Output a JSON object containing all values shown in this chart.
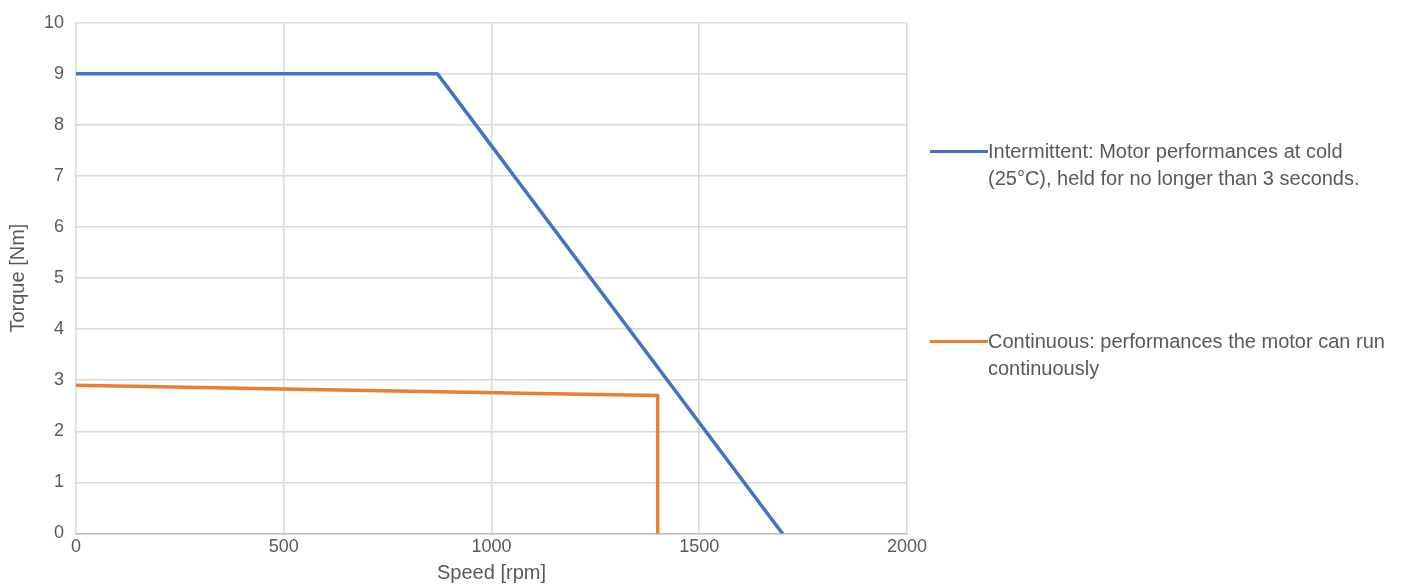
{
  "chart_data": {
    "type": "line",
    "xlabel": "Speed [rpm]",
    "ylabel": "Torque [Nm]",
    "xlim": [
      0,
      2000
    ],
    "xticks": [
      0,
      500,
      1000,
      1500,
      2000
    ],
    "ylim": [
      0,
      10
    ],
    "yticks": [
      0,
      1,
      2,
      3,
      4,
      5,
      6,
      7,
      8,
      9,
      10
    ],
    "grid": true,
    "legend": "right",
    "marker": "none",
    "line_style": "solid",
    "series": [
      {
        "name": "Intermittent: Motor performances at cold (25°C), held for no longer than 3 seconds.",
        "color": "#4472c4",
        "x": [
          0,
          870,
          1700
        ],
        "values": [
          9,
          9,
          0
        ]
      },
      {
        "name": "Continuous: performances the motor can run continuously",
        "color": "#ed7d31",
        "x": [
          0,
          1400,
          1400
        ],
        "values": [
          2.9,
          2.7,
          0
        ]
      }
    ]
  }
}
